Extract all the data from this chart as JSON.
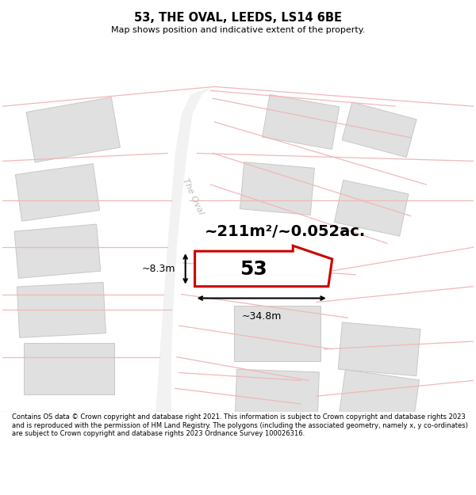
{
  "title": "53, THE OVAL, LEEDS, LS14 6BE",
  "subtitle": "Map shows position and indicative extent of the property.",
  "footer": "Contains OS data © Crown copyright and database right 2021. This information is subject to Crown copyright and database rights 2023 and is reproduced with the permission of HM Land Registry. The polygons (including the associated geometry, namely x, y co-ordinates) are subject to Crown copyright and database rights 2023 Ordnance Survey 100026316.",
  "area_label": "~211m²/~0.052ac.",
  "width_label": "~34.8m",
  "height_label": "~8.3m",
  "plot_number": "53",
  "bg_color": "#ffffff",
  "map_bg": "#ffffff",
  "plot_fill": "#ffffff",
  "plot_edge": "#cc0000",
  "neighbor_fill": "#e0e0e0",
  "neighbor_edge": "#cccccc",
  "road_line_color": "#f0b8b8",
  "road_fill": "#ffffff",
  "street_label": "The Oval",
  "street_label_color": "#bbbbbb"
}
